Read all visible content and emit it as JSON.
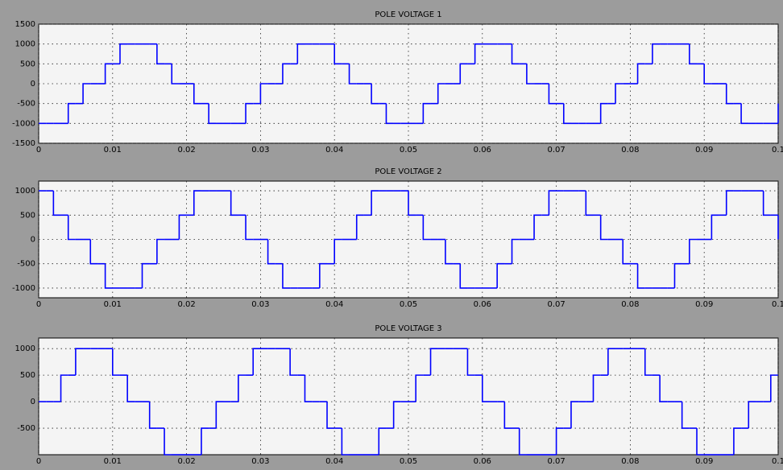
{
  "chart_data": [
    {
      "type": "step",
      "title": "POLE VOLTAGE 1",
      "color": "#0000ff",
      "grid": true,
      "xlim": [
        0,
        0.1
      ],
      "xticks": [
        0,
        0.01,
        0.02,
        0.03,
        0.04,
        0.05,
        0.06,
        0.07,
        0.08,
        0.09,
        0.1
      ],
      "ylim": [
        -1500,
        1500
      ],
      "yticks": [
        -1500,
        -1000,
        -500,
        0,
        500,
        1000,
        1500
      ],
      "x": [
        0,
        0.001,
        0.002,
        0.003,
        0.004,
        0.005,
        0.006,
        0.007,
        0.008,
        0.009,
        0.01,
        0.011,
        0.012,
        0.013,
        0.014,
        0.015,
        0.016,
        0.017,
        0.018,
        0.019,
        0.02,
        0.021,
        0.022,
        0.023,
        0.024,
        0.025,
        0.026,
        0.027,
        0.028,
        0.029,
        0.03,
        0.031,
        0.032,
        0.033,
        0.034,
        0.035,
        0.036,
        0.037,
        0.038,
        0.039,
        0.04,
        0.041,
        0.042,
        0.043,
        0.044,
        0.045,
        0.046,
        0.047,
        0.048,
        0.049,
        0.05,
        0.051,
        0.052,
        0.053,
        0.054,
        0.055,
        0.056,
        0.057,
        0.058,
        0.059,
        0.06,
        0.061,
        0.062,
        0.063,
        0.064,
        0.065,
        0.066,
        0.067,
        0.068,
        0.069,
        0.07,
        0.071,
        0.072,
        0.073,
        0.074,
        0.075,
        0.076,
        0.077,
        0.078,
        0.079,
        0.08,
        0.081,
        0.082,
        0.083,
        0.084,
        0.085,
        0.086,
        0.087,
        0.088,
        0.089,
        0.09,
        0.091,
        0.092,
        0.093,
        0.094,
        0.095,
        0.096,
        0.097,
        0.098,
        0.099,
        0.1
      ],
      "values": [
        -1000,
        -1000,
        -1000,
        -1000,
        -500,
        -500,
        0,
        0,
        0,
        500,
        500,
        1000,
        1000,
        1000,
        1000,
        1000,
        500,
        500,
        0,
        0,
        0,
        -500,
        -500,
        -1000,
        -1000,
        -1000,
        -1000,
        -1000,
        -500,
        -500,
        0,
        0,
        0,
        500,
        500,
        1000,
        1000,
        1000,
        1000,
        1000,
        500,
        500,
        0,
        0,
        0,
        -500,
        -500,
        -1000,
        -1000,
        -1000,
        -1000,
        -1000,
        -500,
        -500,
        0,
        0,
        0,
        500,
        500,
        1000,
        1000,
        1000,
        1000,
        1000,
        500,
        500,
        0,
        0,
        0,
        -500,
        -500,
        -1000,
        -1000,
        -1000,
        -1000,
        -1000,
        -500,
        -500,
        0,
        0,
        0,
        500,
        500,
        1000,
        1000,
        1000,
        1000,
        1000,
        500,
        500,
        0,
        0,
        0,
        -500,
        -500,
        -1000,
        -1000,
        -1000,
        -1000,
        -1000,
        -500
      ]
    },
    {
      "type": "step",
      "title": "POLE VOLTAGE 2",
      "color": "#0000ff",
      "grid": true,
      "xlim": [
        0,
        0.1
      ],
      "xticks": [
        0,
        0.01,
        0.02,
        0.03,
        0.04,
        0.05,
        0.06,
        0.07,
        0.08,
        0.09,
        0.1
      ],
      "ylim": [
        -1200,
        1200
      ],
      "yticks": [
        -1000,
        -500,
        0,
        500,
        1000
      ],
      "x": [
        0,
        0.001,
        0.002,
        0.003,
        0.004,
        0.005,
        0.006,
        0.007,
        0.008,
        0.009,
        0.01,
        0.011,
        0.012,
        0.013,
        0.014,
        0.015,
        0.016,
        0.017,
        0.018,
        0.019,
        0.02,
        0.021,
        0.022,
        0.023,
        0.024,
        0.025,
        0.026,
        0.027,
        0.028,
        0.029,
        0.03,
        0.031,
        0.032,
        0.033,
        0.034,
        0.035,
        0.036,
        0.037,
        0.038,
        0.039,
        0.04,
        0.041,
        0.042,
        0.043,
        0.044,
        0.045,
        0.046,
        0.047,
        0.048,
        0.049,
        0.05,
        0.051,
        0.052,
        0.053,
        0.054,
        0.055,
        0.056,
        0.057,
        0.058,
        0.059,
        0.06,
        0.061,
        0.062,
        0.063,
        0.064,
        0.065,
        0.066,
        0.067,
        0.068,
        0.069,
        0.07,
        0.071,
        0.072,
        0.073,
        0.074,
        0.075,
        0.076,
        0.077,
        0.078,
        0.079,
        0.08,
        0.081,
        0.082,
        0.083,
        0.084,
        0.085,
        0.086,
        0.087,
        0.088,
        0.089,
        0.09,
        0.091,
        0.092,
        0.093,
        0.094,
        0.095,
        0.096,
        0.097,
        0.098,
        0.099,
        0.1
      ],
      "values": [
        1000,
        1000,
        500,
        500,
        0,
        0,
        0,
        -500,
        -500,
        -1000,
        -1000,
        -1000,
        -1000,
        -1000,
        -500,
        -500,
        0,
        0,
        0,
        500,
        500,
        1000,
        1000,
        1000,
        1000,
        1000,
        500,
        500,
        0,
        0,
        0,
        -500,
        -500,
        -1000,
        -1000,
        -1000,
        -1000,
        -1000,
        -500,
        -500,
        0,
        0,
        0,
        500,
        500,
        1000,
        1000,
        1000,
        1000,
        1000,
        500,
        500,
        0,
        0,
        0,
        -500,
        -500,
        -1000,
        -1000,
        -1000,
        -1000,
        -1000,
        -500,
        -500,
        0,
        0,
        0,
        500,
        500,
        1000,
        1000,
        1000,
        1000,
        1000,
        500,
        500,
        0,
        0,
        0,
        -500,
        -500,
        -1000,
        -1000,
        -1000,
        -1000,
        -1000,
        -500,
        -500,
        0,
        0,
        0,
        500,
        500,
        1000,
        1000,
        1000,
        1000,
        1000,
        500,
        500,
        0
      ]
    },
    {
      "type": "step",
      "title": "POLE VOLTAGE 3",
      "color": "#0000ff",
      "grid": true,
      "xlim": [
        0,
        0.1
      ],
      "xticks": [
        0,
        0.01,
        0.02,
        0.03,
        0.04,
        0.05,
        0.06,
        0.07,
        0.08,
        0.09,
        0.1
      ],
      "ylim": [
        -1000,
        1200
      ],
      "yticks": [
        -500,
        0,
        500,
        1000
      ],
      "x": [
        0,
        0.001,
        0.002,
        0.003,
        0.004,
        0.005,
        0.006,
        0.007,
        0.008,
        0.009,
        0.01,
        0.011,
        0.012,
        0.013,
        0.014,
        0.015,
        0.016,
        0.017,
        0.018,
        0.019,
        0.02,
        0.021,
        0.022,
        0.023,
        0.024,
        0.025,
        0.026,
        0.027,
        0.028,
        0.029,
        0.03,
        0.031,
        0.032,
        0.033,
        0.034,
        0.035,
        0.036,
        0.037,
        0.038,
        0.039,
        0.04,
        0.041,
        0.042,
        0.043,
        0.044,
        0.045,
        0.046,
        0.047,
        0.048,
        0.049,
        0.05,
        0.051,
        0.052,
        0.053,
        0.054,
        0.055,
        0.056,
        0.057,
        0.058,
        0.059,
        0.06,
        0.061,
        0.062,
        0.063,
        0.064,
        0.065,
        0.066,
        0.067,
        0.068,
        0.069,
        0.07,
        0.071,
        0.072,
        0.073,
        0.074,
        0.075,
        0.076,
        0.077,
        0.078,
        0.079,
        0.08,
        0.081,
        0.082,
        0.083,
        0.084,
        0.085,
        0.086,
        0.087,
        0.088,
        0.089,
        0.09,
        0.091,
        0.092,
        0.093,
        0.094,
        0.095,
        0.096,
        0.097,
        0.098,
        0.099,
        0.1
      ],
      "values": [
        0,
        0,
        0,
        500,
        500,
        1000,
        1000,
        1000,
        1000,
        1000,
        500,
        500,
        0,
        0,
        0,
        -500,
        -500,
        -1000,
        -1000,
        -1000,
        -1000,
        -1000,
        -500,
        -500,
        0,
        0,
        0,
        500,
        500,
        1000,
        1000,
        1000,
        1000,
        1000,
        500,
        500,
        0,
        0,
        0,
        -500,
        -500,
        -1000,
        -1000,
        -1000,
        -1000,
        -1000,
        -500,
        -500,
        0,
        0,
        0,
        500,
        500,
        1000,
        1000,
        1000,
        1000,
        1000,
        500,
        500,
        0,
        0,
        0,
        -500,
        -500,
        -1000,
        -1000,
        -1000,
        -1000,
        -1000,
        -500,
        -500,
        0,
        0,
        0,
        500,
        500,
        1000,
        1000,
        1000,
        1000,
        1000,
        500,
        500,
        0,
        0,
        0,
        -500,
        -500,
        -1000,
        -1000,
        -1000,
        -1000,
        -1000,
        -500,
        -500,
        0,
        0,
        0,
        500,
        500
      ]
    }
  ]
}
